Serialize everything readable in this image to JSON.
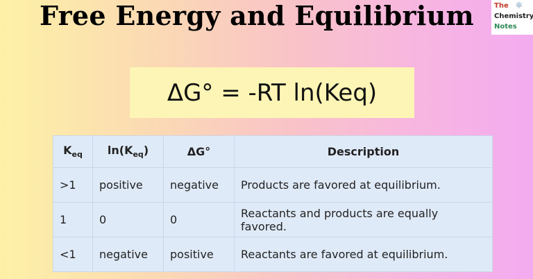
{
  "title": "Free Energy and Equilibrium",
  "logo": {
    "line1": "The",
    "line2": "Chemistry",
    "line3": "Notes",
    "icon": "atom-icon"
  },
  "equation": "ΔG° = -RT ln(Keq)",
  "table": {
    "headers": [
      {
        "main": "K",
        "sub": "eq"
      },
      {
        "main": "ln(K",
        "sub": "eq",
        "tail": ")"
      },
      {
        "main": "ΔG°"
      },
      {
        "main": "Description"
      }
    ],
    "rows": [
      [
        ">1",
        "positive",
        "negative",
        "Products are favored at equilibrium."
      ],
      [
        "1",
        "0",
        "0",
        "Reactants and products are equally favored."
      ],
      [
        "<1",
        "negative",
        "positive",
        "Reactants are favored at equilibrium."
      ]
    ]
  },
  "colors": {
    "table_bg": "#dfeaf8",
    "equation_bg": "#fdf5b5"
  }
}
